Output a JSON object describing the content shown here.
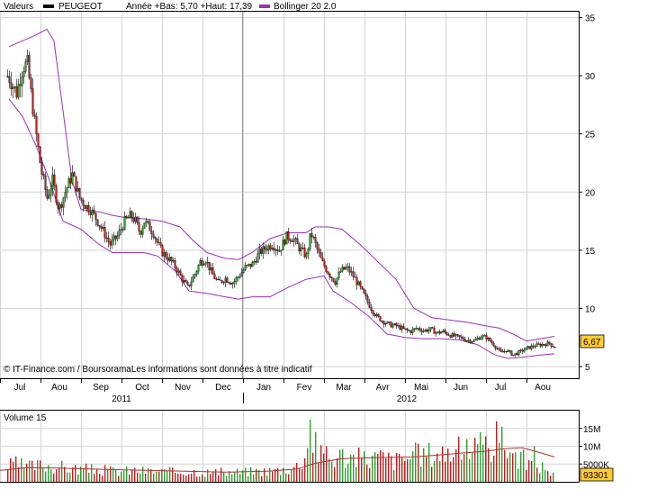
{
  "legend": {
    "series_label": "Valeurs",
    "ticker": "PEUGEOT",
    "range_text": "Année +Bas: 5,70 +Haut: 17,39",
    "indicator": "Bollinger 20 2.0"
  },
  "footer_credit": "© IT-Finance.com / BoursoramaLes informations sont données à titre indicatif",
  "volume_label": "Volume 15",
  "last_price": "6,67",
  "last_volume": "93301",
  "colors": {
    "up_candle": "#2e9e2e",
    "down_candle": "#c01c1c",
    "bollinger": "#9b2fb8",
    "volume_line": "#b03030",
    "label_bg": "#ffcc33",
    "cursor_line": "#999999"
  },
  "chart_data": [
    {
      "type": "candlestick",
      "title": "",
      "x_tick_labels": [
        "Jul",
        "Aou",
        "Sep",
        "Oct",
        "Nov",
        "Dec",
        "Jan",
        "Fev",
        "Mar",
        "Avr",
        "Mai",
        "Jun",
        "Jul",
        "Aou"
      ],
      "year_labels": [
        "2011",
        "2012"
      ],
      "y_tick_labels": [
        "35",
        "30",
        "25",
        "20",
        "15",
        "10",
        "5"
      ],
      "y_ticks": [
        35,
        30,
        25,
        20,
        15,
        10,
        5
      ],
      "ylim": [
        4,
        35.5
      ],
      "grid": true,
      "axis_side": "right",
      "year_low": 5.7,
      "year_high": 17.39,
      "price_path": [
        [
          0,
          30.5
        ],
        [
          10,
          29.8
        ],
        [
          18,
          28.5
        ],
        [
          25,
          30.8
        ],
        [
          30,
          31
        ],
        [
          38,
          26
        ],
        [
          45,
          22
        ],
        [
          52,
          19.5
        ],
        [
          58,
          21
        ],
        [
          65,
          18.5
        ],
        [
          72,
          20
        ],
        [
          80,
          21.5
        ],
        [
          88,
          19.5
        ],
        [
          95,
          18.8
        ],
        [
          100,
          18.5
        ],
        [
          108,
          17.5
        ],
        [
          115,
          16.5
        ],
        [
          122,
          15.5
        ],
        [
          130,
          16.2
        ],
        [
          138,
          17.5
        ],
        [
          145,
          18
        ],
        [
          150,
          17.5
        ],
        [
          155,
          16.5
        ],
        [
          160,
          17.5
        ],
        [
          165,
          17
        ],
        [
          170,
          16.5
        ],
        [
          175,
          15.5
        ],
        [
          180,
          14.8
        ],
        [
          188,
          14.2
        ],
        [
          195,
          13.5
        ],
        [
          202,
          12.5
        ],
        [
          208,
          11.8
        ],
        [
          215,
          12.8
        ],
        [
          222,
          14
        ],
        [
          228,
          14.2
        ],
        [
          235,
          13
        ],
        [
          242,
          12.2
        ],
        [
          250,
          12.6
        ],
        [
          258,
          12.2
        ],
        [
          265,
          12.8
        ],
        [
          272,
          13.5
        ],
        [
          280,
          13.8
        ],
        [
          288,
          14.8
        ],
        [
          295,
          15.2
        ],
        [
          302,
          15.5
        ],
        [
          310,
          15
        ],
        [
          318,
          16.2
        ],
        [
          325,
          16
        ],
        [
          332,
          15.2
        ],
        [
          340,
          14.5
        ],
        [
          345,
          16.5
        ],
        [
          350,
          15.5
        ],
        [
          357,
          14
        ],
        [
          365,
          13
        ],
        [
          372,
          12.3
        ],
        [
          378,
          13.2
        ],
        [
          385,
          13.5
        ],
        [
          392,
          12.8
        ],
        [
          398,
          12
        ],
        [
          405,
          11
        ],
        [
          412,
          10
        ],
        [
          418,
          9.3
        ],
        [
          425,
          8.9
        ],
        [
          432,
          8.6
        ],
        [
          440,
          8.5
        ],
        [
          448,
          8.2
        ],
        [
          455,
          8
        ],
        [
          462,
          8.3
        ],
        [
          470,
          8.1
        ],
        [
          478,
          8.2
        ],
        [
          485,
          7.9
        ],
        [
          492,
          8
        ],
        [
          500,
          7.7
        ],
        [
          510,
          7.5
        ],
        [
          518,
          7.3
        ],
        [
          526,
          7.2
        ],
        [
          534,
          7.6
        ],
        [
          540,
          7.5
        ],
        [
          548,
          6.9
        ],
        [
          556,
          6.2
        ],
        [
          562,
          6.4
        ],
        [
          570,
          6
        ],
        [
          578,
          6.3
        ],
        [
          586,
          6.6
        ],
        [
          594,
          6.8
        ],
        [
          602,
          6.9
        ],
        [
          610,
          7
        ],
        [
          616,
          6.67
        ]
      ],
      "bollinger_upper": [
        [
          10,
          32.5
        ],
        [
          25,
          33
        ],
        [
          40,
          33.5
        ],
        [
          52,
          34
        ],
        [
          60,
          33
        ],
        [
          70,
          27
        ],
        [
          80,
          21
        ],
        [
          90,
          18.5
        ],
        [
          110,
          18.3
        ],
        [
          125,
          18
        ],
        [
          140,
          17.8
        ],
        [
          160,
          17.7
        ],
        [
          180,
          17.5
        ],
        [
          200,
          17
        ],
        [
          215,
          15.8
        ],
        [
          230,
          14.8
        ],
        [
          250,
          14.3
        ],
        [
          265,
          14.2
        ],
        [
          280,
          14.8
        ],
        [
          300,
          16
        ],
        [
          320,
          16.5
        ],
        [
          340,
          16.5
        ],
        [
          350,
          17
        ],
        [
          365,
          17
        ],
        [
          380,
          16.8
        ],
        [
          400,
          15.5
        ],
        [
          420,
          14
        ],
        [
          440,
          12.5
        ],
        [
          460,
          10
        ],
        [
          480,
          9.2
        ],
        [
          500,
          9
        ],
        [
          520,
          8.8
        ],
        [
          540,
          8.5
        ],
        [
          555,
          8.3
        ],
        [
          570,
          7.8
        ],
        [
          585,
          7.2
        ],
        [
          600,
          7.4
        ],
        [
          616,
          7.6
        ]
      ],
      "bollinger_lower": [
        [
          10,
          28
        ],
        [
          25,
          26.5
        ],
        [
          40,
          24
        ],
        [
          55,
          21
        ],
        [
          70,
          17.5
        ],
        [
          90,
          16.8
        ],
        [
          110,
          15.5
        ],
        [
          125,
          14.8
        ],
        [
          145,
          14.8
        ],
        [
          160,
          14.8
        ],
        [
          175,
          14.5
        ],
        [
          195,
          13.2
        ],
        [
          210,
          11.5
        ],
        [
          230,
          11.3
        ],
        [
          250,
          11
        ],
        [
          265,
          10.8
        ],
        [
          280,
          11
        ],
        [
          300,
          11
        ],
        [
          320,
          11.8
        ],
        [
          340,
          12.5
        ],
        [
          360,
          12.8
        ],
        [
          370,
          11.5
        ],
        [
          390,
          10.5
        ],
        [
          410,
          9.3
        ],
        [
          430,
          7.8
        ],
        [
          450,
          7.5
        ],
        [
          470,
          7.4
        ],
        [
          490,
          7.4
        ],
        [
          510,
          7.3
        ],
        [
          530,
          6.9
        ],
        [
          550,
          6
        ],
        [
          565,
          5.7
        ],
        [
          580,
          5.8
        ],
        [
          600,
          6
        ],
        [
          616,
          6.1
        ]
      ]
    },
    {
      "type": "bar",
      "title": "",
      "y_tick_labels": [
        "15M",
        "10M",
        "5000K"
      ],
      "y_ticks": [
        15000000,
        10000000,
        5000000
      ],
      "ylim": [
        0,
        20000000
      ],
      "grid": true,
      "axis_side": "right",
      "volume_path": [
        [
          0,
          3500000
        ],
        [
          15,
          5000000
        ],
        [
          30,
          4200000
        ],
        [
          50,
          4800000
        ],
        [
          70,
          4000000
        ],
        [
          90,
          3600000
        ],
        [
          110,
          3300000
        ],
        [
          130,
          3000000
        ],
        [
          150,
          3200000
        ],
        [
          170,
          2900000
        ],
        [
          190,
          2800000
        ],
        [
          210,
          3000000
        ],
        [
          230,
          2700000
        ],
        [
          250,
          2600000
        ],
        [
          270,
          2800000
        ],
        [
          290,
          3000000
        ],
        [
          310,
          3300000
        ],
        [
          330,
          4500000
        ],
        [
          345,
          11000000
        ],
        [
          360,
          6000000
        ],
        [
          380,
          7500000
        ],
        [
          400,
          6500000
        ],
        [
          420,
          7000000
        ],
        [
          440,
          6000000
        ],
        [
          460,
          7500000
        ],
        [
          480,
          8000000
        ],
        [
          500,
          8500000
        ],
        [
          520,
          9000000
        ],
        [
          540,
          9500000
        ],
        [
          552,
          12000000
        ],
        [
          560,
          10500000
        ],
        [
          575,
          7000000
        ],
        [
          590,
          5000000
        ],
        [
          605,
          4000000
        ],
        [
          616,
          1500000
        ]
      ],
      "spikes": [
        [
          345,
          17500000
        ],
        [
          350,
          14000000
        ],
        [
          362,
          10000000
        ],
        [
          518,
          12000000
        ],
        [
          552,
          17000000
        ],
        [
          558,
          15500000
        ],
        [
          592,
          10000000
        ]
      ],
      "ma_path": [
        [
          0,
          3200000
        ],
        [
          30,
          4000000
        ],
        [
          60,
          3900000
        ],
        [
          100,
          3600000
        ],
        [
          150,
          3300000
        ],
        [
          200,
          3000000
        ],
        [
          250,
          2700000
        ],
        [
          300,
          3000000
        ],
        [
          330,
          3600000
        ],
        [
          350,
          5200000
        ],
        [
          380,
          6500000
        ],
        [
          420,
          6800000
        ],
        [
          460,
          7000000
        ],
        [
          500,
          7800000
        ],
        [
          540,
          8600000
        ],
        [
          560,
          9300000
        ],
        [
          580,
          9600000
        ],
        [
          600,
          8200000
        ],
        [
          616,
          7000000
        ]
      ]
    }
  ]
}
